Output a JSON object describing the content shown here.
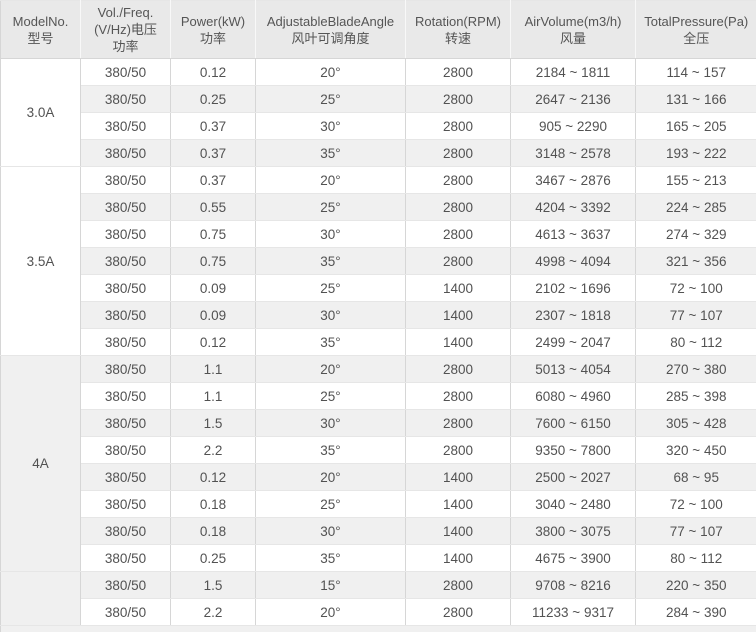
{
  "colors": {
    "header_bg": "#e9e9e9",
    "header_text": "#555555",
    "header_separator": "#f8f8f8",
    "row_bg": "#ffffff",
    "stripe_bg": "#f0f0f0",
    "border_vertical": "#d6d6d6",
    "border_horizontal": "#e6e6e6",
    "text": "#525252"
  },
  "chart_data": {
    "type": "table",
    "columns": [
      {
        "lines": [
          "ModelNo.",
          "型号"
        ]
      },
      {
        "lines": [
          "Vol./Freq.",
          "(V/Hz)电压",
          "功率"
        ]
      },
      {
        "lines": [
          "Power(kW)",
          "功率"
        ]
      },
      {
        "lines": [
          "AdjustableBladeAngle",
          "风叶可调角度"
        ]
      },
      {
        "lines": [
          "Rotation(RPM)",
          "转速"
        ]
      },
      {
        "lines": [
          "AirVolume(m3/h)",
          "风量"
        ]
      },
      {
        "lines": [
          "TotalPressure(Pa)",
          "全压"
        ]
      }
    ],
    "groups": [
      {
        "model": "3.0A",
        "rows": [
          [
            "380/50",
            "0.12",
            "20°",
            "2800",
            "2184 ~ 1811",
            "114 ~ 157"
          ],
          [
            "380/50",
            "0.25",
            "25°",
            "2800",
            "2647 ~ 2136",
            "131 ~ 166"
          ],
          [
            "380/50",
            "0.37",
            "30°",
            "2800",
            "905 ~ 2290",
            "165 ~ 205"
          ],
          [
            "380/50",
            "0.37",
            "35°",
            "2800",
            "3148 ~ 2578",
            "193 ~ 222"
          ]
        ]
      },
      {
        "model": "3.5A",
        "rows": [
          [
            "380/50",
            "0.37",
            "20°",
            "2800",
            "3467 ~ 2876",
            "155 ~ 213"
          ],
          [
            "380/50",
            "0.55",
            "25°",
            "2800",
            "4204 ~ 3392",
            "224 ~ 285"
          ],
          [
            "380/50",
            "0.75",
            "30°",
            "2800",
            "4613 ~ 3637",
            "274 ~ 329"
          ],
          [
            "380/50",
            "0.75",
            "35°",
            "2800",
            "4998 ~ 4094",
            "321 ~ 356"
          ],
          [
            "380/50",
            "0.09",
            "25°",
            "1400",
            "2102 ~ 1696",
            "72 ~ 100"
          ],
          [
            "380/50",
            "0.09",
            "30°",
            "1400",
            "2307 ~ 1818",
            "77 ~ 107"
          ],
          [
            "380/50",
            "0.12",
            "35°",
            "1400",
            "2499 ~ 2047",
            "80 ~ 112"
          ]
        ]
      },
      {
        "model": "4A",
        "rows": [
          [
            "380/50",
            "1.1",
            "20°",
            "2800",
            "5013 ~ 4054",
            "270 ~ 380"
          ],
          [
            "380/50",
            "1.1",
            "25°",
            "2800",
            "6080 ~ 4960",
            "285 ~ 398"
          ],
          [
            "380/50",
            "1.5",
            "30°",
            "2800",
            "7600 ~ 6150",
            "305 ~ 428"
          ],
          [
            "380/50",
            "2.2",
            "35°",
            "2800",
            "9350 ~ 7800",
            "320 ~ 450"
          ],
          [
            "380/50",
            "0.12",
            "20°",
            "1400",
            "2500 ~ 2027",
            "68 ~ 95"
          ],
          [
            "380/50",
            "0.18",
            "25°",
            "1400",
            "3040 ~ 2480",
            "72 ~ 100"
          ],
          [
            "380/50",
            "0.18",
            "30°",
            "1400",
            "3800 ~ 3075",
            "77 ~ 107"
          ],
          [
            "380/50",
            "0.25",
            "35°",
            "1400",
            "4675 ~ 3900",
            "80 ~ 112"
          ]
        ]
      },
      {
        "model": "",
        "rows": [
          [
            "380/50",
            "1.5",
            "15°",
            "2800",
            "9708 ~ 8216",
            "220 ~ 350"
          ],
          [
            "380/50",
            "2.2",
            "20°",
            "2800",
            "11233 ~ 9317",
            "284 ~ 390"
          ]
        ]
      }
    ]
  }
}
